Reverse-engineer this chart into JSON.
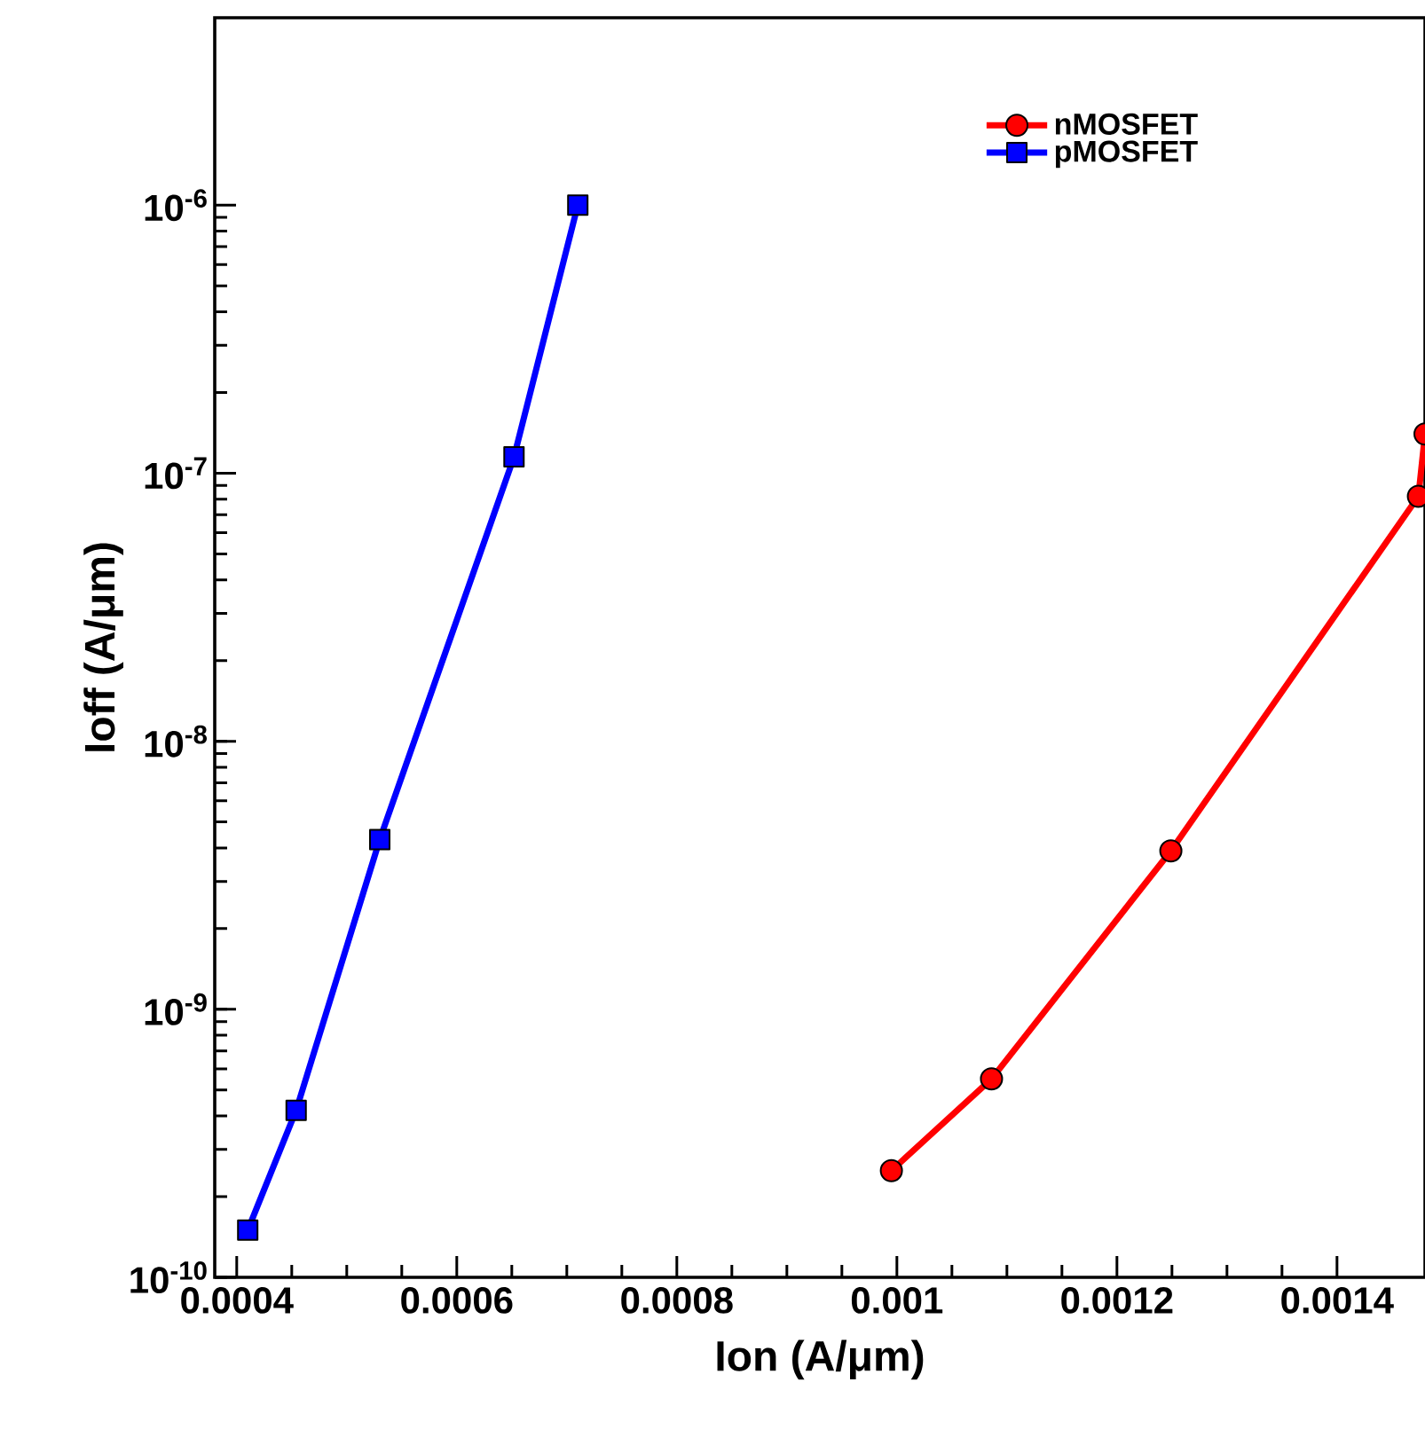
{
  "chart_data": {
    "type": "line",
    "xlabel": "Ion  (A/μm)",
    "ylabel": "Ioff (A/μm)",
    "log": "y",
    "xlim": [
      0.00038,
      0.00148
    ],
    "xticks": [
      0.0004,
      0.0006,
      0.0008,
      0.001,
      0.0012,
      0.0014
    ],
    "ylim": [
      1e-10,
      5e-06
    ],
    "yticks": [
      {
        "value": 1e-10,
        "label": "10$^{-10}$"
      },
      {
        "value": 1e-09,
        "label": "10$^{-9}$"
      },
      {
        "value": 1e-08,
        "label": "10$^{-8}$"
      },
      {
        "value": 1e-07,
        "label": "10$^{-7}$"
      },
      {
        "value": 1e-06,
        "label": "10$^{-6}$"
      }
    ],
    "grid": false,
    "legend": "top right",
    "line_style": "solid",
    "series": [
      {
        "name": "nMOSFET",
        "color": "#ff0000",
        "marker": "circle",
        "x": [
          0.000995,
          0.001086,
          0.001249,
          0.001474,
          0.00148
        ],
        "values": [
          2.5e-10,
          5.5e-10,
          3.9e-09,
          8.2e-08,
          1.4e-07
        ]
      },
      {
        "name": "pMOSFET",
        "color": "#0000ff",
        "marker": "square",
        "x": [
          0.00041,
          0.000454,
          0.00053,
          0.000652,
          0.00071
        ],
        "values": [
          1.5e-10,
          4.2e-10,
          4.3e-09,
          1.15e-07,
          1e-06
        ]
      }
    ]
  }
}
